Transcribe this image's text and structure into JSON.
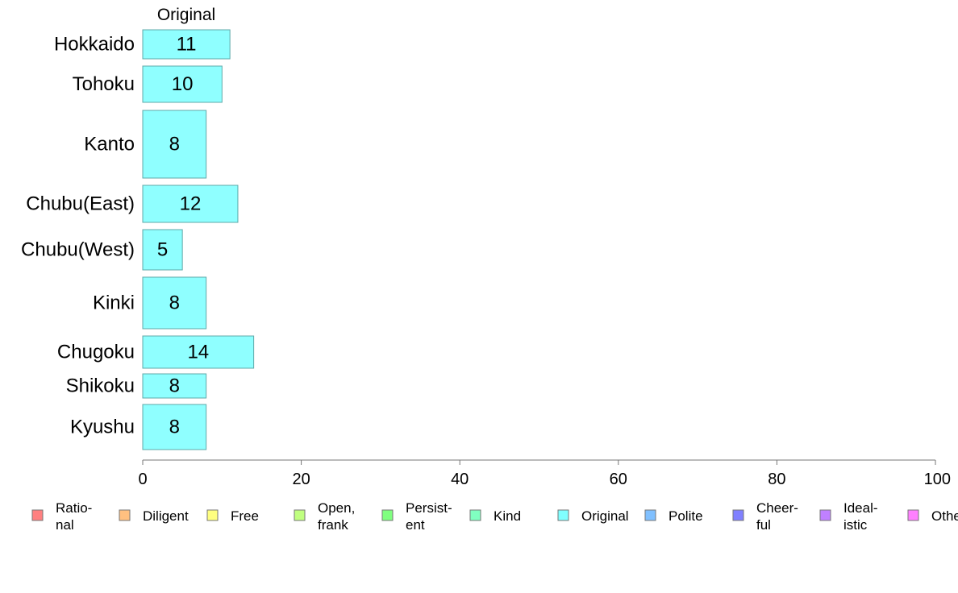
{
  "chart_data": {
    "type": "bar",
    "orientation": "horizontal",
    "panel_title": "Original",
    "categories": [
      "Hokkaido",
      "Tohoku",
      "Kanto",
      "Chubu(East)",
      "Chubu(West)",
      "Kinki",
      "Chugoku",
      "Shikoku",
      "Kyushu"
    ],
    "values": [
      11,
      10,
      8,
      12,
      5,
      8,
      14,
      8,
      8
    ],
    "value_labels": [
      "11",
      "10",
      "8",
      "12",
      "5",
      "8",
      "14",
      "8",
      "8"
    ],
    "xlim": [
      0,
      100
    ],
    "xticks": [
      0,
      20,
      40,
      60,
      80,
      100
    ],
    "xtick_labels": [
      "0",
      "20",
      "40",
      "60",
      "80",
      "100"
    ],
    "bar_color": "#8fffff",
    "legend_placement": "bottom",
    "legend": [
      {
        "lines": [
          "Ratio-",
          "nal"
        ],
        "color": "#ff8080"
      },
      {
        "lines": [
          "Diligent"
        ],
        "color": "#ffc080"
      },
      {
        "lines": [
          "Free"
        ],
        "color": "#ffff80"
      },
      {
        "lines": [
          "Open,",
          "frank"
        ],
        "color": "#c0ff80"
      },
      {
        "lines": [
          "Persist-",
          "ent"
        ],
        "color": "#80ff80"
      },
      {
        "lines": [
          "Kind"
        ],
        "color": "#80ffc0"
      },
      {
        "lines": [
          "Original"
        ],
        "color": "#80ffff"
      },
      {
        "lines": [
          "Polite"
        ],
        "color": "#80c0ff"
      },
      {
        "lines": [
          "Cheer-",
          "ful"
        ],
        "color": "#8080ff"
      },
      {
        "lines": [
          "Ideal-",
          "istic"
        ],
        "color": "#c080ff"
      },
      {
        "lines": [
          "Other"
        ],
        "color": "#ff80ff"
      }
    ]
  }
}
